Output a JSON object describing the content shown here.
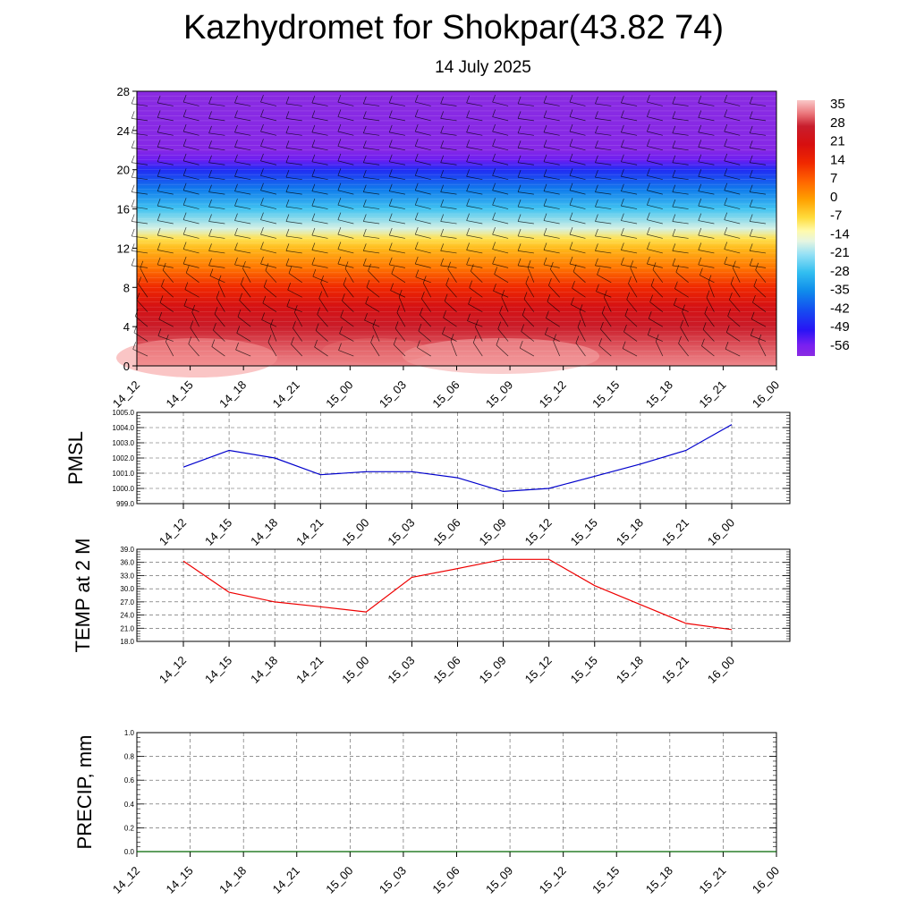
{
  "title": "Kazhydromet for Shokpar(43.82 74)",
  "subtitle": "14 July 2025",
  "chart_data": [
    {
      "type": "heatmap",
      "name": "temperature-profile",
      "description_units": "degC",
      "x_ticks": [
        "14_12",
        "14_15",
        "14_18",
        "14_21",
        "15_00",
        "15_03",
        "15_06",
        "15_09",
        "15_12",
        "15_15",
        "15_18",
        "15_21",
        "16_00"
      ],
      "y_ticks": [
        "0",
        "4",
        "8",
        "12",
        "16",
        "20",
        "24",
        "28"
      ],
      "ylim": [
        0,
        28
      ],
      "colorbar_labels": [
        "35",
        "28",
        "21",
        "14",
        "7",
        "0",
        "-7",
        "-14",
        "-21",
        "-28",
        "-35",
        "-42",
        "-49",
        "-56"
      ],
      "colorbar_range": [
        -60,
        38
      ],
      "level_profile": [
        {
          "y": 0,
          "value": 34
        },
        {
          "y": 2,
          "value": 31
        },
        {
          "y": 4,
          "value": 27
        },
        {
          "y": 6,
          "value": 22
        },
        {
          "y": 8,
          "value": 14
        },
        {
          "y": 10,
          "value": 5
        },
        {
          "y": 12,
          "value": -3
        },
        {
          "y": 13,
          "value": -8
        },
        {
          "y": 14,
          "value": -17
        },
        {
          "y": 16,
          "value": -27
        },
        {
          "y": 18,
          "value": -37
        },
        {
          "y": 20,
          "value": -47
        },
        {
          "y": 21,
          "value": -55
        },
        {
          "y": 22,
          "value": -59
        },
        {
          "y": 28,
          "value": -60
        }
      ],
      "wind_barbs": true
    },
    {
      "type": "line",
      "name": "pmsl",
      "ylabel": "PMSL",
      "categories": [
        "14_12",
        "14_15",
        "14_18",
        "14_21",
        "15_00",
        "15_03",
        "15_06",
        "15_09",
        "15_12",
        "15_15",
        "15_18",
        "15_21",
        "16_00"
      ],
      "values": [
        1001.4,
        1002.5,
        1002.0,
        1000.9,
        1001.1,
        1001.1,
        1000.7,
        999.8,
        1000.0,
        1000.8,
        1001.6,
        1002.5,
        1004.2
      ],
      "ylim": [
        999.0,
        1005.0
      ],
      "y_ticks": [
        "999.0",
        "1000.0",
        "1001.0",
        "1002.0",
        "1003.0",
        "1004.0",
        "1005.0"
      ],
      "color": "#0000cc"
    },
    {
      "type": "line",
      "name": "temp-2m",
      "ylabel": "TEMP at 2 M",
      "categories": [
        "14_12",
        "14_15",
        "14_18",
        "14_21",
        "15_00",
        "15_03",
        "15_06",
        "15_09",
        "15_12",
        "15_15",
        "15_18",
        "15_21",
        "16_00"
      ],
      "values": [
        36.3,
        29.2,
        27.0,
        25.9,
        24.7,
        32.6,
        34.6,
        36.7,
        36.7,
        30.7,
        26.4,
        22.1,
        20.7
      ],
      "ylim": [
        18.0,
        39.0
      ],
      "y_ticks": [
        "18.0",
        "21.0",
        "24.0",
        "27.0",
        "30.0",
        "33.0",
        "36.0",
        "39.0"
      ],
      "color": "#ee0000"
    },
    {
      "type": "line",
      "name": "precip",
      "ylabel": "PRECIP, mm",
      "categories": [
        "14_12",
        "14_15",
        "14_18",
        "14_21",
        "15_00",
        "15_03",
        "15_06",
        "15_09",
        "15_12",
        "15_15",
        "15_18",
        "15_21",
        "16_00"
      ],
      "values": [
        0,
        0,
        0,
        0,
        0,
        0,
        0,
        0,
        0,
        0,
        0,
        0,
        0
      ],
      "ylim": [
        0.0,
        1.0
      ],
      "y_ticks": [
        "0.0",
        "0.2",
        "0.4",
        "0.6",
        "0.8",
        "1.0"
      ],
      "color": "#006600"
    }
  ]
}
